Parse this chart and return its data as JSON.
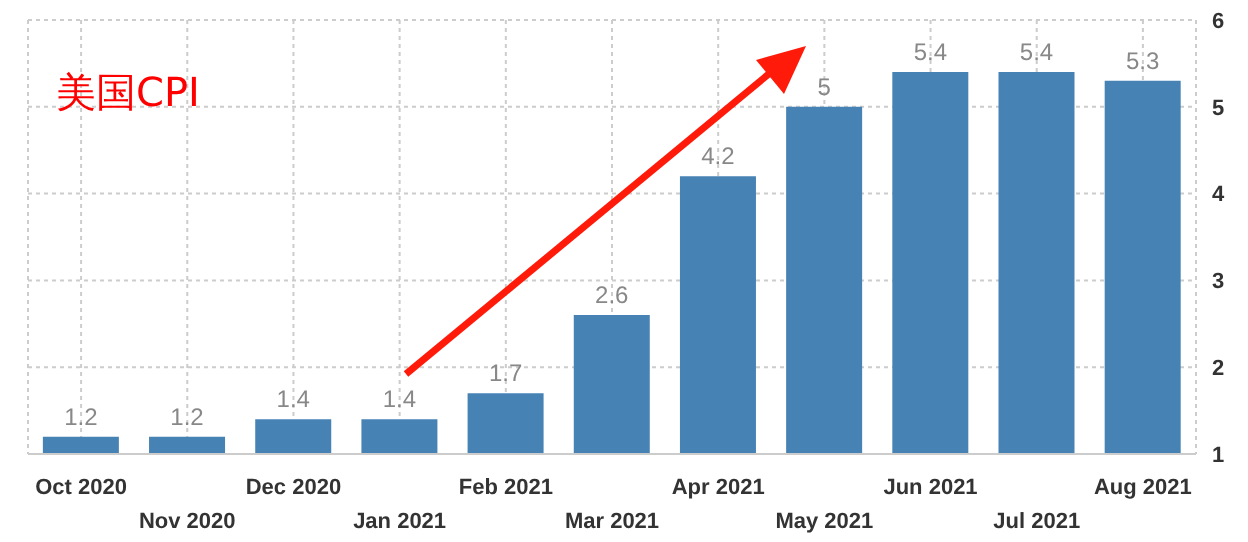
{
  "chart_data": {
    "type": "bar",
    "title": "美国CPI",
    "categories": [
      "Oct 2020",
      "Nov 2020",
      "Dec 2020",
      "Jan 2021",
      "Feb 2021",
      "Mar 2021",
      "Apr 2021",
      "May 2021",
      "Jun 2021",
      "Jul 2021",
      "Aug 2021"
    ],
    "values": [
      1.2,
      1.2,
      1.4,
      1.4,
      1.7,
      2.6,
      4.2,
      5,
      5.4,
      5.4,
      5.3
    ],
    "color": "#4682b4",
    "ylim": [
      1,
      6
    ],
    "yticks": [
      1,
      2,
      3,
      4,
      5,
      6
    ],
    "grid": true,
    "data_labels": true
  }
}
